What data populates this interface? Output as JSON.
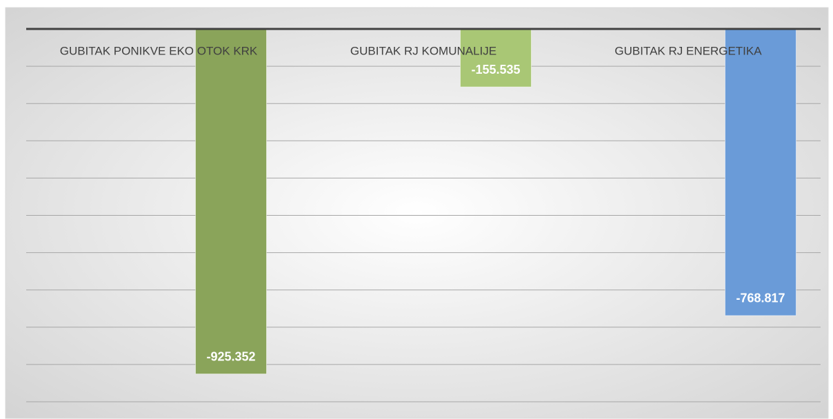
{
  "chart_data": {
    "type": "bar",
    "categories": [
      "GUBITAK PONIKVE EKO OTOK KRK",
      "GUBITAK RJ KOMUNALIJE",
      "GUBITAK RJ ENERGETIKA"
    ],
    "values": [
      -925352,
      -155535,
      -768817
    ],
    "value_labels": [
      "-925.352",
      "-155.535",
      "-768.817"
    ],
    "colors": [
      "#8aa45a",
      "#a9c775",
      "#6a9bd8"
    ],
    "ylim": [
      -1000000,
      0
    ],
    "yticks": [
      -1000000,
      -900000,
      -800000,
      -700000,
      -600000,
      -500000,
      -400000,
      -300000,
      -200000,
      -100000,
      0
    ],
    "grid": true
  }
}
